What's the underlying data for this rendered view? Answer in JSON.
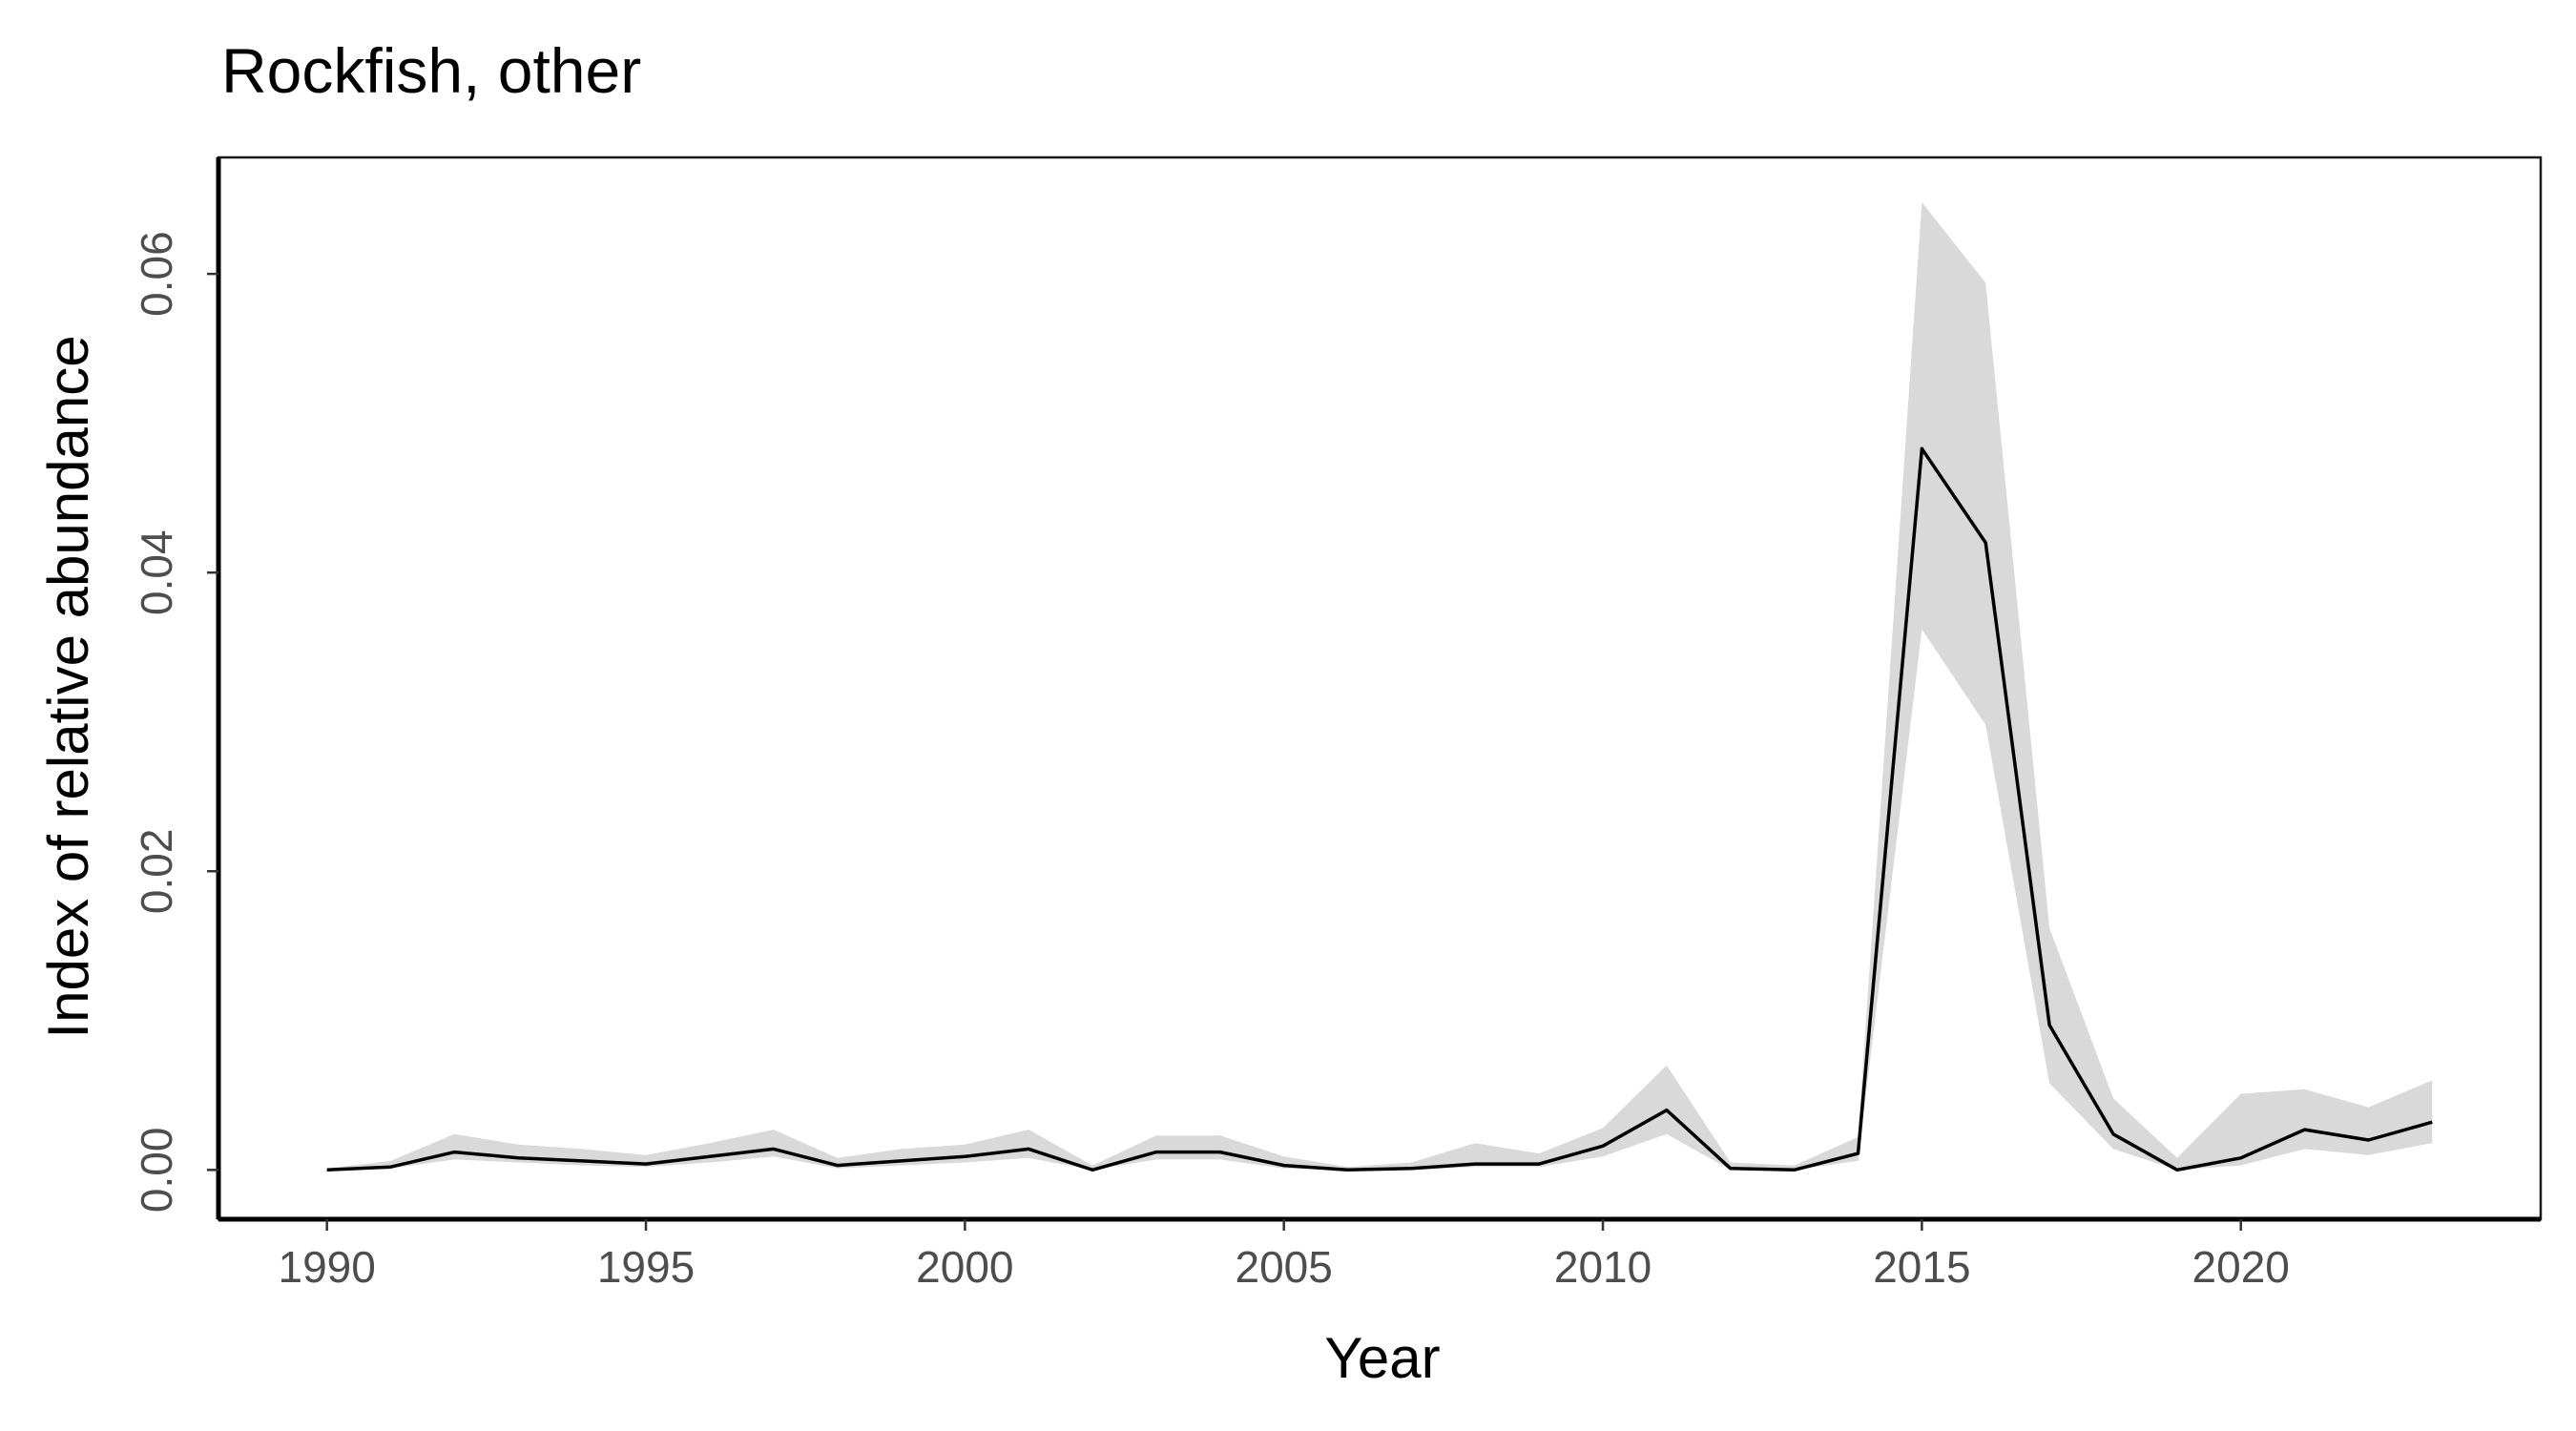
{
  "chart_data": {
    "type": "line",
    "title": "Rockfish, other",
    "xlabel": "Year",
    "ylabel": "Index of relative abundance",
    "xlim": [
      1988.3,
      2024.7
    ],
    "ylim": [
      -0.0033,
      0.0678
    ],
    "x_ticks": [
      1990,
      1995,
      2000,
      2005,
      2010,
      2015,
      2020
    ],
    "x_tick_labels": [
      "1990",
      "1995",
      "2000",
      "2005",
      "2010",
      "2015",
      "2020"
    ],
    "y_ticks": [
      0.0,
      0.02,
      0.04,
      0.06
    ],
    "y_tick_labels": [
      "0.00",
      "0.02",
      "0.04",
      "0.06"
    ],
    "grid": false,
    "legend": "none",
    "line_color": "#000000",
    "band_color": "#d9d9d9",
    "series": [
      {
        "x": [
          1990,
          1991,
          1992,
          1993,
          1994,
          1995,
          1996,
          1997,
          1998,
          1999,
          2000,
          2001,
          2002,
          2003,
          2004,
          2005,
          2006,
          2007,
          2008,
          2009,
          2010,
          2011,
          2012,
          2013,
          2014,
          2015,
          2016,
          2017,
          2018,
          2019,
          2020,
          2021,
          2022,
          2023
        ],
        "y": [
          0.0,
          0.0002,
          0.0012,
          0.0008,
          0.0006,
          0.0004,
          0.0009,
          0.0014,
          0.0003,
          0.0006,
          0.0009,
          0.0014,
          0.0,
          0.0012,
          0.0012,
          0.0003,
          0.0,
          0.0001,
          0.0004,
          0.0004,
          0.0016,
          0.004,
          0.0001,
          0.0,
          0.0011,
          0.0483,
          0.042,
          0.0097,
          0.0024,
          0.0,
          0.0008,
          0.0027,
          0.002,
          0.0032
        ],
        "lower": [
          0.0,
          0.0001,
          0.0007,
          0.0005,
          0.0003,
          0.0002,
          0.0005,
          0.0009,
          0.0001,
          0.0003,
          0.0005,
          0.0008,
          0.0,
          0.0007,
          0.0007,
          0.0001,
          0.0,
          0.0,
          0.0002,
          0.0002,
          0.0009,
          0.0024,
          0.0,
          0.0,
          0.0006,
          0.0362,
          0.0298,
          0.0058,
          0.0014,
          0.0,
          0.0003,
          0.0014,
          0.001,
          0.0018
        ],
        "upper": [
          0.0001,
          0.0006,
          0.0024,
          0.0017,
          0.0014,
          0.001,
          0.0018,
          0.0027,
          0.0008,
          0.0014,
          0.0017,
          0.0027,
          0.0003,
          0.0023,
          0.0023,
          0.0009,
          0.0002,
          0.0005,
          0.0018,
          0.0011,
          0.0028,
          0.007,
          0.0005,
          0.0003,
          0.0022,
          0.0648,
          0.0594,
          0.0162,
          0.0048,
          0.0008,
          0.0051,
          0.0054,
          0.0042,
          0.006
        ]
      }
    ]
  }
}
